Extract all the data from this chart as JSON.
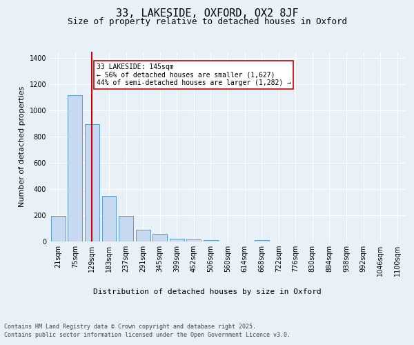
{
  "title1": "33, LAKESIDE, OXFORD, OX2 8JF",
  "title2": "Size of property relative to detached houses in Oxford",
  "xlabel": "Distribution of detached houses by size in Oxford",
  "ylabel": "Number of detached properties",
  "categories": [
    "21sqm",
    "75sqm",
    "129sqm",
    "183sqm",
    "237sqm",
    "291sqm",
    "345sqm",
    "399sqm",
    "452sqm",
    "506sqm",
    "560sqm",
    "614sqm",
    "668sqm",
    "722sqm",
    "776sqm",
    "830sqm",
    "884sqm",
    "938sqm",
    "992sqm",
    "1046sqm",
    "1100sqm"
  ],
  "values": [
    197,
    1120,
    895,
    350,
    195,
    92,
    57,
    22,
    17,
    12,
    0,
    0,
    12,
    0,
    0,
    0,
    0,
    0,
    0,
    0,
    0
  ],
  "bar_color": "#c6d9f0",
  "bar_edge_color": "#5b9bd5",
  "vline_x": 2,
  "vline_color": "#cc0000",
  "annotation_text": "33 LAKESIDE: 145sqm\n← 56% of detached houses are smaller (1,627)\n44% of semi-detached houses are larger (1,282) →",
  "annotation_box_color": "#ffffff",
  "annotation_box_edge": "#cc0000",
  "ylim": [
    0,
    1450
  ],
  "yticks": [
    0,
    200,
    400,
    600,
    800,
    1000,
    1200,
    1400
  ],
  "bg_color": "#e8f0f8",
  "plot_bg_color": "#e8f0f8",
  "footer1": "Contains HM Land Registry data © Crown copyright and database right 2025.",
  "footer2": "Contains public sector information licensed under the Open Government Licence v3.0.",
  "title1_fontsize": 11,
  "title2_fontsize": 9,
  "axis_fontsize": 8,
  "tick_fontsize": 7,
  "annot_fontsize": 7,
  "footer_fontsize": 6
}
